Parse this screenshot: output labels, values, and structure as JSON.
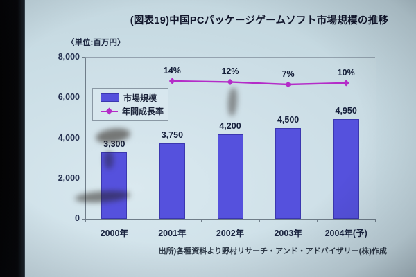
{
  "slide": {
    "title": "(図表19)中国PCパッケージゲームソフト市場規模の推移",
    "unit_label": "〈単位:百万円〉",
    "source": "出所)各種資料より野村リサーチ・アンド・アドバイザリー(株)作成"
  },
  "legend": {
    "bar_label": "市場規模",
    "line_label": "年間成長率"
  },
  "colors": {
    "bar_fill": "#5551dd",
    "bar_border": "#3b37b0",
    "line": "#b42cc8",
    "grid": "#8a98a4",
    "text": "#1a2440",
    "slide_bg": "#cadde5",
    "band": "#060608"
  },
  "chart_data": {
    "type": "bar",
    "categories": [
      "2000年",
      "2001年",
      "2002年",
      "2003年",
      "2004年(予)"
    ],
    "series": [
      {
        "name": "市場規模",
        "type": "bar",
        "values": [
          3300,
          3750,
          4200,
          4500,
          4950
        ],
        "labels": [
          "3,300",
          "3,750",
          "4,200",
          "4,500",
          "4,950"
        ]
      },
      {
        "name": "年間成長率",
        "type": "line",
        "values": [
          null,
          14,
          12,
          7,
          10
        ],
        "labels": [
          "",
          "14%",
          "12%",
          "7%",
          "10%"
        ]
      }
    ],
    "title": "中国PCパッケージゲームソフト市場規模の推移",
    "xlabel": "",
    "ylabel": "百万円",
    "ylim": [
      0,
      8000
    ],
    "yticks": [
      {
        "value": 8000,
        "label": "8,000"
      },
      {
        "value": 6000,
        "label": "6,000"
      },
      {
        "value": 4000,
        "label": "4,000"
      },
      {
        "value": 2000,
        "label": "2,000"
      },
      {
        "value": 0,
        "label": "0"
      }
    ],
    "grid": true,
    "legend_position": "upper-left-inside"
  }
}
